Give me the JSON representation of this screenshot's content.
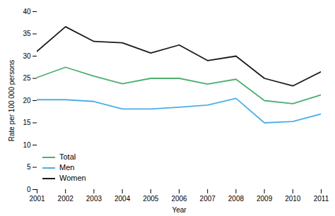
{
  "chart_data": {
    "type": "line",
    "xlabel": "Year",
    "ylabel": "Rate per 100 000 persons",
    "x": [
      2001,
      2002,
      2003,
      2004,
      2005,
      2006,
      2007,
      2008,
      2009,
      2010,
      2011
    ],
    "series": [
      {
        "name": "Total",
        "color": "#4caf6e",
        "values": [
          25.2,
          27.5,
          25.5,
          23.8,
          25.0,
          25.0,
          23.7,
          24.8,
          20.0,
          19.3,
          21.3
        ]
      },
      {
        "name": "Men",
        "color": "#4daee8",
        "values": [
          20.2,
          20.2,
          19.8,
          18.1,
          18.1,
          18.5,
          19.0,
          20.5,
          15.0,
          15.3,
          17.0
        ]
      },
      {
        "name": "Women",
        "color": "#1a1a1a",
        "values": [
          31.1,
          36.6,
          33.3,
          33.0,
          30.7,
          32.5,
          29.0,
          30.0,
          25.0,
          23.3,
          26.5
        ]
      }
    ],
    "xlim": [
      2001,
      2011
    ],
    "xticks": [
      2001,
      2002,
      2003,
      2004,
      2005,
      2006,
      2007,
      2008,
      2009,
      2010,
      2011
    ],
    "ylim": [
      0,
      40
    ],
    "yticks": [
      0,
      5,
      10,
      15,
      20,
      25,
      30,
      35,
      40
    ],
    "legend": "lower left",
    "grid": false
  }
}
